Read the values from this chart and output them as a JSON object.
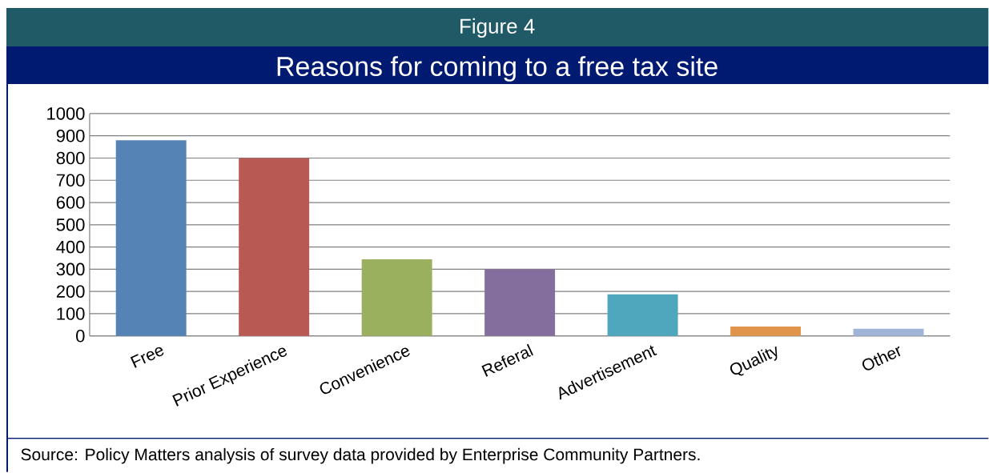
{
  "chart_data": {
    "type": "bar",
    "title": "Reasons for coming to a free tax site",
    "annotations": [
      "Figure 4",
      "Source: Policy Matters analysis of survey data provided by Enterprise Community Partners."
    ],
    "categories": [
      "Free",
      "Prior Experience",
      "Convenience",
      "Referal",
      "Advertisement",
      "Quality",
      "Other"
    ],
    "values": [
      880,
      800,
      345,
      300,
      187,
      42,
      32
    ],
    "colors": [
      "#5583b6",
      "#b85a53",
      "#9bb05e",
      "#836e9d",
      "#4ea7bd",
      "#e1954b",
      "#9fb4d7"
    ],
    "ylim": [
      0,
      1000
    ],
    "yticks": [
      0,
      100,
      200,
      300,
      400,
      500,
      600,
      700,
      800,
      900,
      1000
    ],
    "grid": "y"
  }
}
